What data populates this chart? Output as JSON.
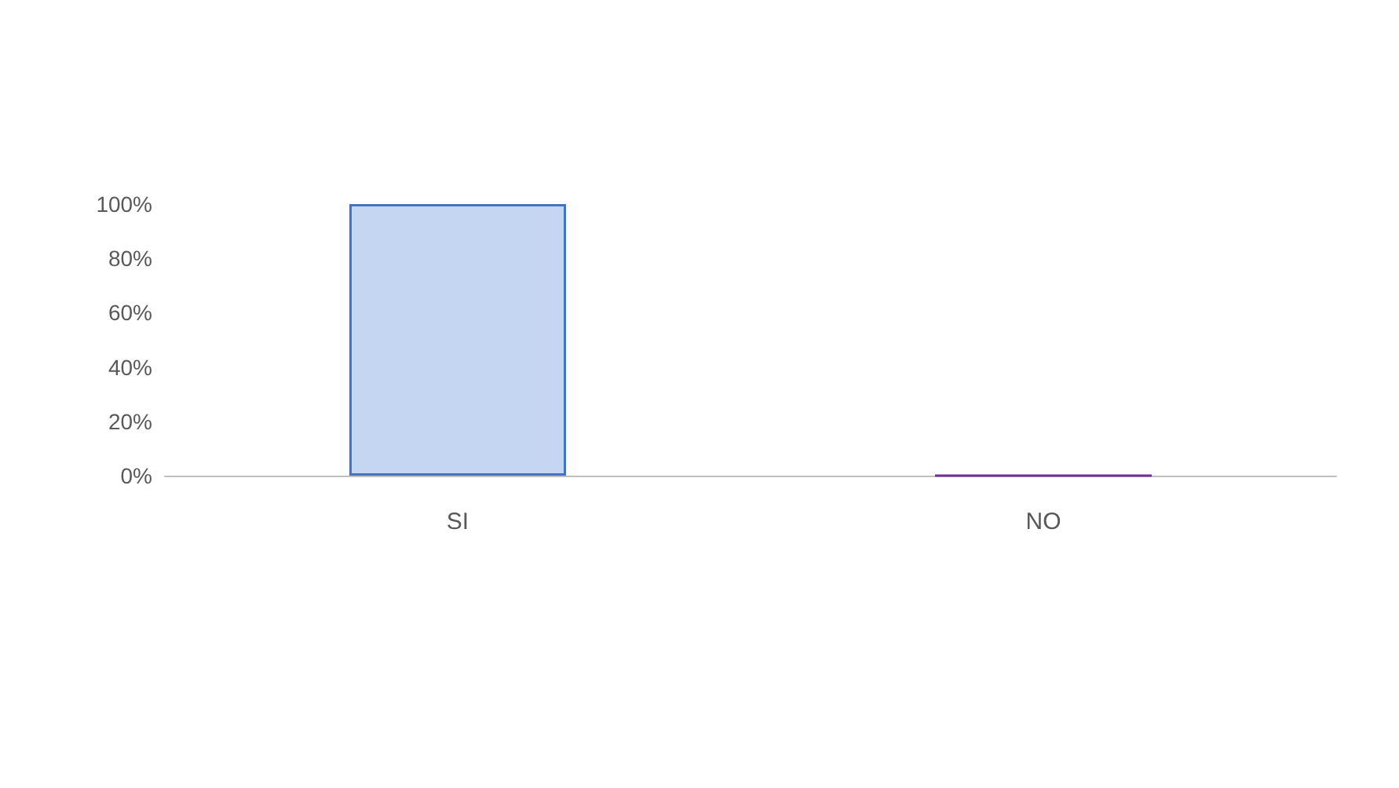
{
  "chart_data": {
    "type": "bar",
    "categories": [
      "SI",
      "NO"
    ],
    "values": [
      100,
      0
    ],
    "colors": [
      "#c5d6f2",
      "#7030a0"
    ],
    "ylim": [
      0,
      100
    ],
    "yticks": [
      {
        "value": 0,
        "label": "0%"
      },
      {
        "value": 20,
        "label": "20%"
      },
      {
        "value": 40,
        "label": "40%"
      },
      {
        "value": 60,
        "label": "60%"
      },
      {
        "value": 80,
        "label": "80%"
      },
      {
        "value": 100,
        "label": "100%"
      }
    ],
    "grid": false
  }
}
